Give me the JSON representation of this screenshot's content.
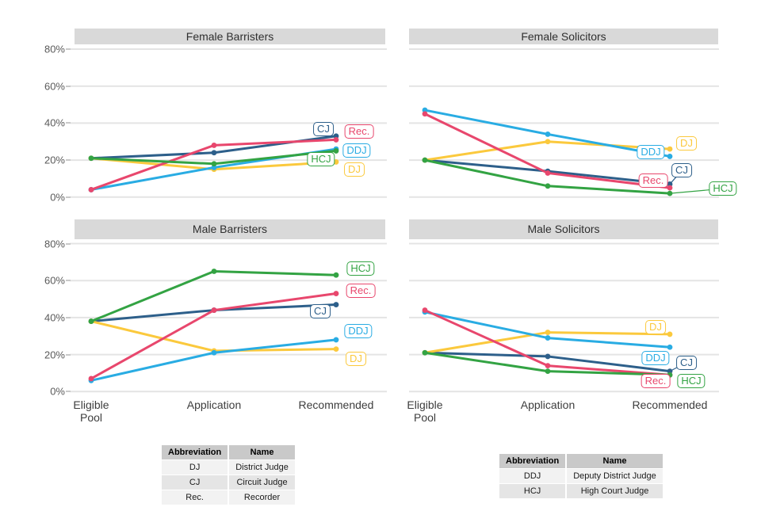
{
  "axis": {
    "yticks": [
      {
        "value": 80,
        "label": "80%"
      },
      {
        "value": 60,
        "label": "60%"
      },
      {
        "value": 40,
        "label": "40%"
      },
      {
        "value": 20,
        "label": "20%"
      },
      {
        "value": 0,
        "label": "0%"
      }
    ],
    "x_labels": [
      "Eligible Pool",
      "Application",
      "Recommended"
    ]
  },
  "chart_data": [
    {
      "type": "line",
      "title": "Female Barristers",
      "row": 0,
      "col": 0,
      "x_categories": [
        "Eligible Pool",
        "Application",
        "Recommended"
      ],
      "ylim": [
        0,
        85
      ],
      "grid": true,
      "legend_position": "end-of-line-labels",
      "series": [
        {
          "name": "CJ",
          "color": "#2d5f8a",
          "values": [
            21,
            24,
            33
          ],
          "label_dx": -16,
          "label_dy": -9,
          "connector": false
        },
        {
          "name": "DJ",
          "color": "#fbc93d",
          "values": [
            21,
            15,
            19
          ],
          "label_dx": 23,
          "label_dy": 10,
          "connector": false
        },
        {
          "name": "DDJ",
          "color": "#29ace3",
          "values": [
            4,
            16,
            26
          ],
          "label_dx": 26,
          "label_dy": 2,
          "connector": false
        },
        {
          "name": "Rec.",
          "color": "#e8476d",
          "values": [
            4,
            28,
            31
          ],
          "label_dx": 29,
          "label_dy": -10,
          "connector": false
        },
        {
          "name": "HCJ",
          "color": "#33a343",
          "values": [
            21,
            18,
            25
          ],
          "label_dx": -19,
          "label_dy": 11,
          "connector": false
        }
      ]
    },
    {
      "type": "line",
      "title": "Female Solicitors",
      "row": 0,
      "col": 1,
      "x_categories": [
        "Eligible Pool",
        "Application",
        "Recommended"
      ],
      "ylim": [
        0,
        85
      ],
      "grid": true,
      "legend_position": "end-of-line-labels",
      "series": [
        {
          "name": "CJ",
          "color": "#2d5f8a",
          "values": [
            20,
            14,
            7
          ],
          "label_dx": 15,
          "label_dy": -17,
          "connector": true
        },
        {
          "name": "DJ",
          "color": "#fbc93d",
          "values": [
            20,
            30,
            26
          ],
          "label_dx": 21,
          "label_dy": -7,
          "connector": false
        },
        {
          "name": "DDJ",
          "color": "#29ace3",
          "values": [
            47,
            34,
            22
          ],
          "label_dx": -24,
          "label_dy": -5,
          "connector": false
        },
        {
          "name": "Rec.",
          "color": "#e8476d",
          "values": [
            45,
            13,
            5
          ],
          "label_dx": -21,
          "label_dy": -9,
          "connector": false
        },
        {
          "name": "HCJ",
          "color": "#33a343",
          "values": [
            20,
            6,
            2
          ],
          "label_dx": 67,
          "label_dy": -6,
          "connector": true
        }
      ]
    },
    {
      "type": "line",
      "title": "Male Barristers",
      "row": 1,
      "col": 0,
      "x_categories": [
        "Eligible Pool",
        "Application",
        "Recommended"
      ],
      "ylim": [
        0,
        85
      ],
      "grid": true,
      "legend_position": "end-of-line-labels",
      "series": [
        {
          "name": "CJ",
          "color": "#2d5f8a",
          "values": [
            38,
            44,
            47
          ],
          "label_dx": -20,
          "label_dy": 8,
          "connector": false
        },
        {
          "name": "DJ",
          "color": "#fbc93d",
          "values": [
            38,
            22,
            23
          ],
          "label_dx": 25,
          "label_dy": 12,
          "connector": false
        },
        {
          "name": "DDJ",
          "color": "#29ace3",
          "values": [
            6,
            21,
            28
          ],
          "label_dx": 28,
          "label_dy": -11,
          "connector": false
        },
        {
          "name": "Rec.",
          "color": "#e8476d",
          "values": [
            7,
            44,
            53
          ],
          "label_dx": 31,
          "label_dy": -4,
          "connector": false
        },
        {
          "name": "HCJ",
          "color": "#33a343",
          "values": [
            38,
            65,
            63
          ],
          "label_dx": 31,
          "label_dy": -8,
          "connector": false
        }
      ]
    },
    {
      "type": "line",
      "title": "Male Solicitors",
      "row": 1,
      "col": 1,
      "x_categories": [
        "Eligible Pool",
        "Application",
        "Recommended"
      ],
      "ylim": [
        0,
        85
      ],
      "grid": true,
      "legend_position": "end-of-line-labels",
      "series": [
        {
          "name": "CJ",
          "color": "#2d5f8a",
          "values": [
            21,
            19,
            11
          ],
          "label_dx": 21,
          "label_dy": -11,
          "connector": true
        },
        {
          "name": "DJ",
          "color": "#fbc93d",
          "values": [
            21,
            32,
            31
          ],
          "label_dx": -18,
          "label_dy": -9,
          "connector": false
        },
        {
          "name": "DDJ",
          "color": "#29ace3",
          "values": [
            43,
            29,
            24
          ],
          "label_dx": -18,
          "label_dy": 14,
          "connector": false
        },
        {
          "name": "Rec.",
          "color": "#e8476d",
          "values": [
            44,
            14,
            9
          ],
          "label_dx": -18,
          "label_dy": 8,
          "connector": false
        },
        {
          "name": "HCJ",
          "color": "#33a343",
          "values": [
            21,
            11,
            9
          ],
          "label_dx": 27,
          "label_dy": 8,
          "connector": false
        }
      ]
    }
  ],
  "legend_tables": [
    {
      "headers": [
        "Abbreviation",
        "Name"
      ],
      "rows": [
        [
          "DJ",
          "District Judge"
        ],
        [
          "CJ",
          "Circuit Judge"
        ],
        [
          "Rec.",
          "Recorder"
        ]
      ]
    },
    {
      "headers": [
        "Abbreviation",
        "Name"
      ],
      "rows": [
        [
          "DDJ",
          "Deputy District Judge"
        ],
        [
          "HCJ",
          "High Court Judge"
        ]
      ]
    }
  ],
  "style_colors": {
    "gridline": "#e4e4e4",
    "strip_background": "#d9d9d9",
    "tick_text": "#5a5a5a"
  }
}
